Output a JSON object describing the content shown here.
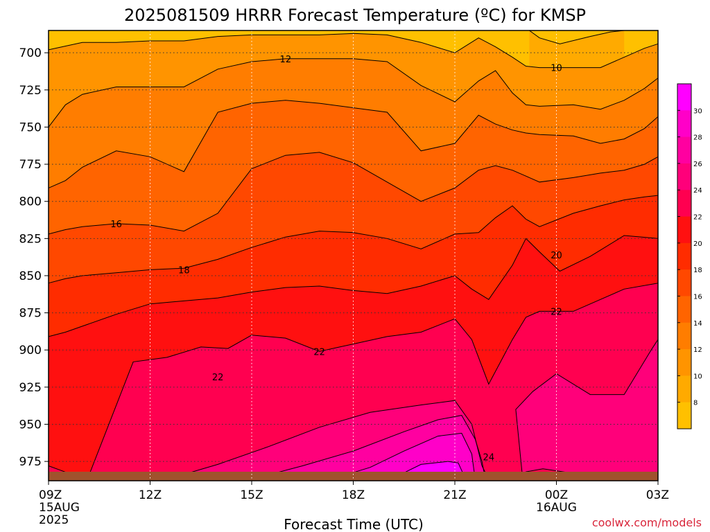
{
  "chart_data": {
    "type": "heatmap",
    "title": "2025081509 HRRR Forecast Temperature (ºC) for KMSP",
    "xlabel": "Forecast Time (UTC)",
    "credit": "coolwx.com/models",
    "x_ticks": [
      {
        "label": "09Z",
        "sub1": "15AUG",
        "sub2": "2025",
        "hours": 0
      },
      {
        "label": "12Z",
        "sub1": "",
        "sub2": "",
        "hours": 3
      },
      {
        "label": "15Z",
        "sub1": "",
        "sub2": "",
        "hours": 6
      },
      {
        "label": "18Z",
        "sub1": "",
        "sub2": "",
        "hours": 9
      },
      {
        "label": "21Z",
        "sub1": "",
        "sub2": "",
        "hours": 12
      },
      {
        "label": "00Z",
        "sub1": "16AUG",
        "sub2": "",
        "hours": 15
      },
      {
        "label": "03Z",
        "sub1": "",
        "sub2": "",
        "hours": 18
      }
    ],
    "y_ticks": [
      700,
      725,
      750,
      775,
      800,
      825,
      850,
      875,
      900,
      925,
      950,
      975
    ],
    "xlim_hours": [
      0,
      18
    ],
    "ylim_hpa": [
      685,
      988
    ],
    "y_axis": "pressure (hPa), increasing downward",
    "grid": true,
    "colorbar": {
      "ticks": [
        30,
        28,
        26,
        24,
        22,
        20,
        18,
        16,
        14,
        12,
        10,
        8
      ],
      "bands": [
        {
          "min": 6,
          "max": 8,
          "color": "#ffc000"
        },
        {
          "min": 8,
          "max": 10,
          "color": "#ffaa00"
        },
        {
          "min": 10,
          "max": 12,
          "color": "#ff9400"
        },
        {
          "min": 12,
          "max": 14,
          "color": "#ff7d00"
        },
        {
          "min": 14,
          "max": 16,
          "color": "#ff6400"
        },
        {
          "min": 16,
          "max": 18,
          "color": "#ff4800"
        },
        {
          "min": 18,
          "max": 20,
          "color": "#ff2c00"
        },
        {
          "min": 20,
          "max": 22,
          "color": "#ff1010"
        },
        {
          "min": 22,
          "max": 24,
          "color": "#ff0050"
        },
        {
          "min": 24,
          "max": 26,
          "color": "#ff007a"
        },
        {
          "min": 26,
          "max": 28,
          "color": "#ff00a0"
        },
        {
          "min": 28,
          "max": 30,
          "color": "#ff00c8"
        },
        {
          "min": 30,
          "max": 32,
          "color": "#ff00ff"
        }
      ]
    },
    "contour_labels": [
      "12",
      "10",
      "16",
      "18",
      "20",
      "22",
      "22",
      "22",
      "24"
    ],
    "isotherms": [
      {
        "value": 8,
        "color": "#ffc000",
        "points": [
          [
            14.2,
            685
          ],
          [
            14.5,
            690
          ],
          [
            15.1,
            694
          ],
          [
            16.0,
            689
          ],
          [
            16.6,
            686
          ],
          [
            17.0,
            685
          ]
        ]
      },
      {
        "value": 10,
        "color": "#ffaa00",
        "points": [
          [
            0,
            698
          ],
          [
            0.4,
            696
          ],
          [
            1,
            693
          ],
          [
            2,
            693
          ],
          [
            3,
            692
          ],
          [
            4,
            692
          ],
          [
            5,
            689
          ],
          [
            6,
            688
          ],
          [
            7,
            688
          ],
          [
            8,
            688
          ],
          [
            9,
            687
          ],
          [
            10,
            688
          ],
          [
            11,
            693
          ],
          [
            12,
            700
          ],
          [
            12.7,
            690
          ],
          [
            13.2,
            696
          ],
          [
            13.7,
            703
          ],
          [
            14.1,
            709
          ],
          [
            14.5,
            710
          ],
          [
            15.5,
            710
          ],
          [
            16.3,
            710
          ],
          [
            17.0,
            703
          ],
          [
            17.6,
            697
          ],
          [
            18,
            694
          ]
        ]
      },
      {
        "value": 12,
        "color": "#ff9400",
        "points": [
          [
            0,
            750
          ],
          [
            0.5,
            735
          ],
          [
            1,
            728
          ],
          [
            2,
            723
          ],
          [
            3,
            723
          ],
          [
            4,
            723
          ],
          [
            5,
            711
          ],
          [
            6,
            706
          ],
          [
            7,
            704
          ],
          [
            8,
            704
          ],
          [
            9,
            704
          ],
          [
            10,
            706
          ],
          [
            11,
            722
          ],
          [
            12,
            733
          ],
          [
            12.7,
            719
          ],
          [
            13.2,
            712
          ],
          [
            13.7,
            727
          ],
          [
            14.1,
            735
          ],
          [
            14.5,
            736
          ],
          [
            15.5,
            735
          ],
          [
            16.3,
            738
          ],
          [
            17.0,
            732
          ],
          [
            17.6,
            724
          ],
          [
            18,
            717
          ]
        ]
      },
      {
        "value": 14,
        "color": "#ff7d00",
        "points": [
          [
            0,
            791
          ],
          [
            0.5,
            786
          ],
          [
            1,
            777
          ],
          [
            2,
            766
          ],
          [
            3,
            770
          ],
          [
            4,
            780
          ],
          [
            5,
            740
          ],
          [
            6,
            734
          ],
          [
            7,
            732
          ],
          [
            8,
            734
          ],
          [
            9,
            737
          ],
          [
            10,
            740
          ],
          [
            11,
            766
          ],
          [
            12,
            761
          ],
          [
            12.7,
            742
          ],
          [
            13.2,
            748
          ],
          [
            13.7,
            752
          ],
          [
            14.1,
            754
          ],
          [
            14.5,
            755
          ],
          [
            15.5,
            756
          ],
          [
            16.3,
            761
          ],
          [
            17.0,
            758
          ],
          [
            17.6,
            751
          ],
          [
            18,
            743
          ]
        ]
      },
      {
        "value": 16,
        "color": "#ff6400",
        "points": [
          [
            0,
            822
          ],
          [
            0.5,
            819
          ],
          [
            1,
            817
          ],
          [
            2,
            815
          ],
          [
            3,
            816
          ],
          [
            4,
            820
          ],
          [
            5,
            808
          ],
          [
            6,
            778
          ],
          [
            7,
            769
          ],
          [
            8,
            767
          ],
          [
            9,
            774
          ],
          [
            10,
            787
          ],
          [
            11,
            800
          ],
          [
            12,
            791
          ],
          [
            12.7,
            779
          ],
          [
            13.2,
            776
          ],
          [
            13.7,
            779
          ],
          [
            14.1,
            783
          ],
          [
            14.5,
            787
          ],
          [
            15.5,
            784
          ],
          [
            16.3,
            781
          ],
          [
            17.0,
            779
          ],
          [
            17.6,
            775
          ],
          [
            18,
            770
          ]
        ]
      },
      {
        "value": 18,
        "color": "#ff4800",
        "points": [
          [
            0,
            855
          ],
          [
            0.5,
            852
          ],
          [
            1,
            850
          ],
          [
            2,
            848
          ],
          [
            3,
            846
          ],
          [
            4,
            845
          ],
          [
            5,
            839
          ],
          [
            6,
            831
          ],
          [
            7,
            824
          ],
          [
            8,
            820
          ],
          [
            9,
            821
          ],
          [
            10,
            825
          ],
          [
            11,
            832
          ],
          [
            12,
            822
          ],
          [
            12.7,
            821
          ],
          [
            13.2,
            811
          ],
          [
            13.7,
            803
          ],
          [
            14.1,
            812
          ],
          [
            14.5,
            817
          ],
          [
            15.5,
            808
          ],
          [
            16.3,
            803
          ],
          [
            17.0,
            799
          ],
          [
            17.6,
            797
          ],
          [
            18,
            796
          ]
        ]
      },
      {
        "value": 20,
        "color": "#ff2c00",
        "points": [
          [
            0,
            891
          ],
          [
            0.5,
            888
          ],
          [
            1,
            884
          ],
          [
            2,
            876
          ],
          [
            3,
            869
          ],
          [
            4,
            867
          ],
          [
            5,
            865
          ],
          [
            6,
            861
          ],
          [
            7,
            858
          ],
          [
            8,
            857
          ],
          [
            9,
            860
          ],
          [
            10,
            862
          ],
          [
            11,
            857
          ],
          [
            12,
            850
          ],
          [
            12.5,
            859
          ],
          [
            13.0,
            866
          ],
          [
            13.7,
            843
          ],
          [
            14.1,
            825
          ],
          [
            14.5,
            834
          ],
          [
            15.1,
            847
          ],
          [
            16.0,
            837
          ],
          [
            17.0,
            823
          ],
          [
            18,
            825
          ]
        ]
      },
      {
        "value": 22,
        "color": "#ff1010",
        "points": [
          [
            0,
            978
          ],
          [
            0.6,
            983
          ],
          [
            1.2,
            984
          ],
          [
            2.5,
            908
          ],
          [
            3.5,
            905
          ],
          [
            4.5,
            898
          ],
          [
            5.3,
            899
          ],
          [
            6.0,
            890
          ],
          [
            7.0,
            892
          ],
          [
            8.0,
            901
          ],
          [
            8.6,
            898
          ],
          [
            9.0,
            896
          ],
          [
            10.0,
            891
          ],
          [
            11.0,
            888
          ],
          [
            12,
            879
          ],
          [
            12.5,
            893
          ],
          [
            13.0,
            923
          ],
          [
            13.7,
            893
          ],
          [
            14.1,
            878
          ],
          [
            14.5,
            874
          ],
          [
            15.5,
            874
          ],
          [
            16.3,
            866
          ],
          [
            17.0,
            859
          ],
          [
            18,
            855
          ]
        ]
      },
      {
        "value": 24,
        "color": "#ff0050",
        "points": [
          [
            3.8,
            985
          ],
          [
            5.0,
            977
          ],
          [
            6.5,
            965
          ],
          [
            8.0,
            952
          ],
          [
            9.5,
            942
          ],
          [
            11.0,
            937
          ],
          [
            12.0,
            934
          ],
          [
            12.5,
            950
          ],
          [
            12.8,
            978
          ],
          [
            13.0,
            987
          ]
        ]
      },
      {
        "value": 24,
        "color": "#ff0050",
        "points": [
          [
            14.0,
            986
          ],
          [
            13.8,
            940
          ],
          [
            14.3,
            928
          ],
          [
            15.0,
            916
          ],
          [
            16.0,
            930
          ],
          [
            17.0,
            930
          ],
          [
            17.8,
            900
          ],
          [
            18,
            893
          ]
        ]
      },
      {
        "value": 26,
        "color": "#ff007a",
        "points": [
          [
            6.0,
            987
          ],
          [
            7.5,
            978
          ],
          [
            9.0,
            968
          ],
          [
            10.5,
            955
          ],
          [
            11.5,
            947
          ],
          [
            12.2,
            944
          ],
          [
            12.6,
            960
          ],
          [
            12.8,
            975
          ],
          [
            12.9,
            987
          ]
        ]
      },
      {
        "value": 28,
        "color": "#ff00a0",
        "points": [
          [
            8.5,
            986
          ],
          [
            9.5,
            979
          ],
          [
            10.5,
            968
          ],
          [
            11.5,
            958
          ],
          [
            12.2,
            956
          ],
          [
            12.5,
            970
          ],
          [
            12.6,
            987
          ]
        ]
      },
      {
        "value": 30,
        "color": "#ff00c8",
        "points": [
          [
            10.2,
            986
          ],
          [
            11.0,
            977
          ],
          [
            11.8,
            975
          ],
          [
            12.1,
            976
          ],
          [
            12.3,
            986
          ]
        ]
      },
      {
        "value": 22,
        "color": "#ff1010",
        "points": [
          [
            14.0,
            987
          ],
          [
            14.1,
            982
          ],
          [
            14.6,
            980
          ],
          [
            15.5,
            983
          ],
          [
            16.5,
            985
          ],
          [
            17.0,
            988
          ]
        ]
      }
    ],
    "fill_order": "each isotherm curve is filled downward (toward higher pressure) with its band colour; background band is 6–8 °C"
  }
}
